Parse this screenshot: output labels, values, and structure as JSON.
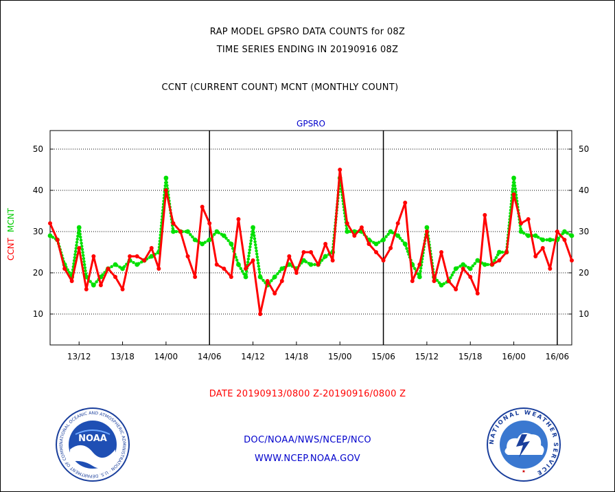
{
  "titles": {
    "line1": "RAP MODEL GPSRO DATA COUNTS for 08Z",
    "line2": "TIME SERIES ENDING IN 20190916 08Z",
    "line3": "CCNT (CURRENT COUNT) MCNT (MONTHLY COUNT)"
  },
  "footer": {
    "date_range": "DATE 20190913/0800 Z-20190916/0800 Z",
    "org": "DOC/NOAA/NWS/NCEP/NCO",
    "url": "WWW.NCEP.NOAA.GOV"
  },
  "logos": {
    "noaa_text": "NOAA",
    "noaa_ring": "NATIONAL OCEANIC AND ATMOSPHERIC ADMINISTRATION · U.S. DEPARTMENT OF COMMERCE",
    "nws_ring": "NATIONAL WEATHER SERVICE"
  },
  "colors": {
    "ccnt": "#ff0000",
    "mcnt": "#00e000",
    "panel_label": "#0000cc",
    "date_text": "#ff0000"
  },
  "chart_data": {
    "type": "line",
    "title": "GPSRO",
    "ylabel_parts": [
      "CCNT",
      "MCNT"
    ],
    "ylim": [
      2.5,
      54.5
    ],
    "y_ticks": [
      10,
      20,
      30,
      40,
      50
    ],
    "x_range_hours": [
      0,
      72
    ],
    "x_ticks": [
      {
        "h": 4,
        "label": "13/12"
      },
      {
        "h": 10,
        "label": "13/18"
      },
      {
        "h": 16,
        "label": "14/00"
      },
      {
        "h": 22,
        "label": "14/06"
      },
      {
        "h": 28,
        "label": "14/12"
      },
      {
        "h": 34,
        "label": "14/18"
      },
      {
        "h": 40,
        "label": "15/00"
      },
      {
        "h": 46,
        "label": "15/06"
      },
      {
        "h": 52,
        "label": "15/12"
      },
      {
        "h": 58,
        "label": "15/18"
      },
      {
        "h": 64,
        "label": "16/00"
      },
      {
        "h": 70,
        "label": "16/06"
      }
    ],
    "day_separators_hours": [
      22,
      46,
      70
    ],
    "grid": true,
    "series": [
      {
        "name": "CCNT",
        "color": "#ff0000",
        "style": "solid",
        "values": [
          32,
          28,
          21,
          18,
          26,
          16,
          24,
          17,
          21,
          19,
          16,
          24,
          24,
          23,
          26,
          21,
          40,
          32,
          30,
          24,
          19,
          36,
          32,
          22,
          21,
          19,
          33,
          21,
          23,
          10,
          18,
          15,
          18,
          24,
          20,
          25,
          25,
          22,
          27,
          23,
          45,
          32,
          29,
          31,
          27,
          25,
          23,
          26,
          32,
          37,
          18,
          22,
          30,
          18,
          25,
          18,
          16,
          21,
          19,
          15,
          34,
          22,
          23,
          25,
          39,
          32,
          33,
          24,
          26,
          21,
          30,
          28,
          23
        ]
      },
      {
        "name": "MCNT",
        "color": "#00e000",
        "style": "dotted",
        "values": [
          29,
          28,
          22,
          19,
          31,
          19,
          17,
          19,
          21,
          22,
          21,
          23,
          22,
          23,
          24,
          25,
          43,
          30,
          30,
          30,
          28,
          27,
          28,
          30,
          29,
          27,
          22,
          19,
          31,
          19,
          17,
          19,
          21,
          22,
          21,
          23,
          22,
          22,
          24,
          25,
          43,
          30,
          30,
          30,
          28,
          27,
          28,
          30,
          29,
          27,
          22,
          19,
          31,
          19,
          17,
          18,
          21,
          22,
          21,
          23,
          22,
          22,
          25,
          25,
          43,
          30,
          29,
          29,
          28,
          28,
          28,
          30,
          29
        ]
      }
    ]
  }
}
